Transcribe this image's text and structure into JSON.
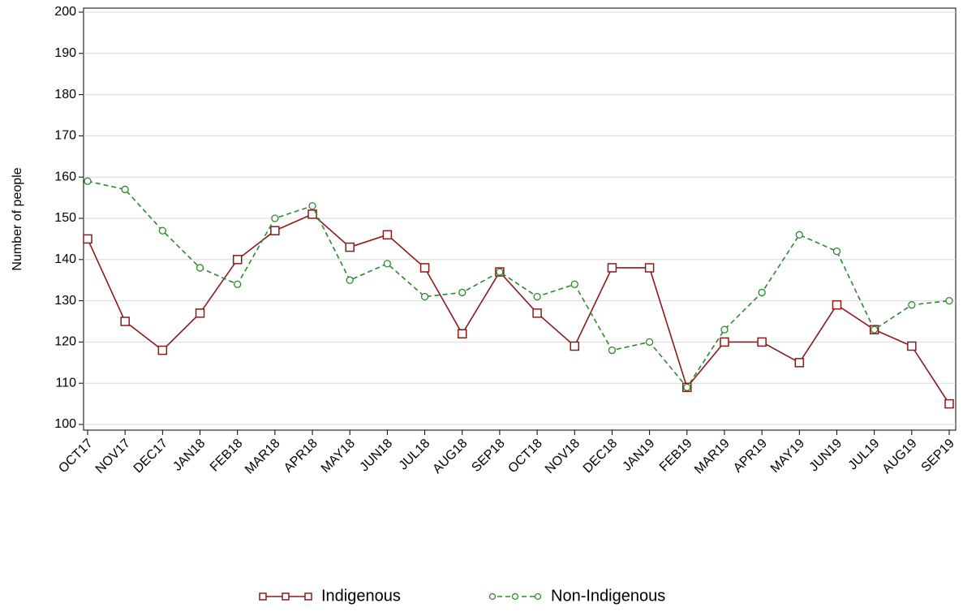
{
  "chart_data": {
    "type": "line",
    "y_label": "Number of people",
    "categories": [
      "OCT17",
      "NOV17",
      "DEC17",
      "JAN18",
      "FEB18",
      "MAR18",
      "APR18",
      "MAY18",
      "JUN18",
      "JUL18",
      "AUG18",
      "SEP18",
      "OCT18",
      "NOV18",
      "DEC18",
      "JAN19",
      "FEB19",
      "MAR19",
      "APR19",
      "MAY19",
      "JUN19",
      "JUL19",
      "AUG19",
      "SEP19"
    ],
    "series": [
      {
        "name": "Indigenous",
        "color": "#8b1a1a",
        "marker": "square",
        "dashed": false,
        "values": [
          145,
          125,
          118,
          127,
          140,
          147,
          151,
          143,
          146,
          138,
          122,
          137,
          127,
          119,
          138,
          138,
          109,
          120,
          120,
          115,
          129,
          123,
          119,
          105
        ]
      },
      {
        "name": "Non-Indigenous",
        "color": "#2a8a2a",
        "marker": "circle",
        "dashed": true,
        "values": [
          159,
          157,
          147,
          138,
          134,
          150,
          153,
          135,
          139,
          131,
          132,
          137,
          131,
          134,
          118,
          120,
          109,
          123,
          132,
          146,
          142,
          123,
          129,
          130
        ]
      }
    ],
    "ylim": [
      100,
      200
    ],
    "yticks": [
      100,
      110,
      120,
      130,
      140,
      150,
      160,
      170,
      180,
      190,
      200
    ],
    "grid": true
  }
}
